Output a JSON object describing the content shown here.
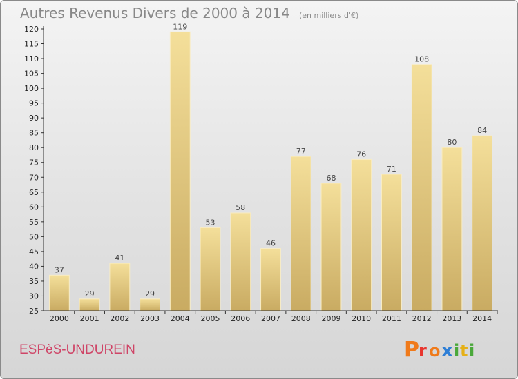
{
  "chart_data": {
    "type": "bar",
    "title": "Autres Revenus Divers de 2000 à 2014",
    "subtitle": "(en milliers d'€)",
    "categories": [
      "2000",
      "2001",
      "2002",
      "2003",
      "2004",
      "2005",
      "2006",
      "2007",
      "2008",
      "2009",
      "2010",
      "2011",
      "2012",
      "2013",
      "2014"
    ],
    "values": [
      37,
      29,
      41,
      29,
      119,
      53,
      58,
      46,
      77,
      68,
      76,
      71,
      108,
      80,
      84
    ],
    "ylim": [
      25,
      120
    ],
    "yticks": [
      25,
      30,
      35,
      40,
      45,
      50,
      55,
      60,
      65,
      70,
      75,
      80,
      85,
      90,
      95,
      100,
      105,
      110,
      115,
      120
    ],
    "grid": false,
    "bar_color": "#e6cc82"
  },
  "footer": {
    "commune": "ESPèS-UNDUREIN",
    "logo_text": "Proxiti",
    "logo_colors": [
      "#f07a1a",
      "#e8362f",
      "#2f7fd6",
      "#4aa83a",
      "#e5b017"
    ]
  }
}
